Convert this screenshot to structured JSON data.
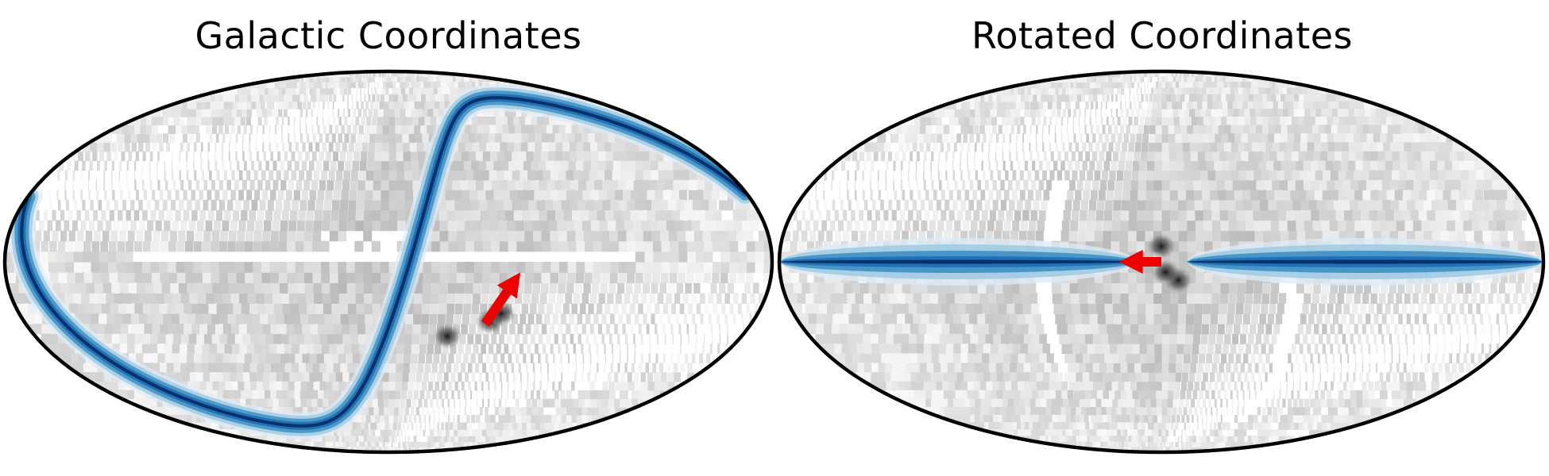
{
  "chart_data": [
    {
      "type": "heatmap",
      "projection": "mollweide",
      "title": "Galactic Coordinates",
      "background_map": "greyscale density",
      "highlight": {
        "kind": "great-circle band",
        "color": "#08519c",
        "pole_lon_deg": 80,
        "pole_lat_deg": 20,
        "track": "closed loop around the map centre"
      },
      "arrow": {
        "color": "#ee0000",
        "from_lon_deg": -48,
        "from_lat_deg": -24,
        "to_lon_deg": -62,
        "to_lat_deg": -4
      },
      "dark_spots": [
        {
          "lon_deg": -30,
          "lat_deg": -29
        },
        {
          "lon_deg": -50,
          "lat_deg": -23
        },
        {
          "lon_deg": -55,
          "lat_deg": -20
        }
      ],
      "masked_regions": [
        "galactic plane",
        "near-equator strip"
      ],
      "grid": false,
      "legend": "none"
    },
    {
      "type": "heatmap",
      "projection": "mollweide",
      "title": "Rotated Coordinates",
      "background_map": "greyscale density",
      "highlight": {
        "kind": "equatorial band",
        "color": "#08519c",
        "lat_deg": 0,
        "lon_range_deg": [
          -180,
          180
        ],
        "gap_near_lon_deg": [
          -12,
          12
        ]
      },
      "arrow": {
        "color": "#ee0000",
        "from_lon_deg": 0,
        "from_lat_deg": 0,
        "to_lon_deg": 20,
        "to_lat_deg": 0
      },
      "dark_spots": [
        {
          "lon_deg": 0,
          "lat_deg": 6
        },
        {
          "lon_deg": -8,
          "lat_deg": -7
        },
        {
          "lon_deg": -2,
          "lat_deg": -4
        }
      ],
      "masked_regions": [
        "rotated galactic plane (tilted ring)"
      ],
      "grid": false,
      "legend": "none"
    }
  ]
}
